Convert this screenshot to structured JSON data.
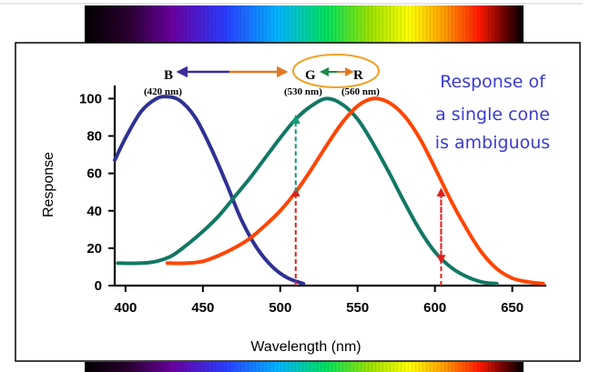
{
  "chart_data": {
    "type": "line",
    "title": "",
    "xlabel": "Wavelength (nm)",
    "ylabel": "Response",
    "xlim": [
      393,
      672
    ],
    "ylim": [
      0,
      107
    ],
    "xticks": [
      400,
      450,
      500,
      550,
      600,
      650
    ],
    "yticks": [
      0,
      20,
      40,
      60,
      80,
      100
    ],
    "series": [
      {
        "name": "B",
        "color": "#2e3192",
        "x": [
          393,
          400,
          410,
          420,
          427,
          435,
          445,
          455,
          465,
          475,
          485,
          495,
          505,
          515
        ],
        "y": [
          67,
          79,
          93,
          100,
          101,
          99,
          90,
          74,
          55,
          35,
          20,
          10,
          4,
          1
        ]
      },
      {
        "name": "G",
        "color": "#117864",
        "x": [
          395,
          410,
          420,
          430,
          440,
          450,
          460,
          470,
          480,
          490,
          500,
          510,
          520,
          530,
          540,
          550,
          560,
          570,
          580,
          590,
          600,
          610,
          620,
          630,
          640
        ],
        "y": [
          12,
          12,
          13,
          16,
          22,
          29,
          37,
          47,
          57,
          68,
          79,
          89,
          96,
          100,
          97,
          89,
          76,
          61,
          45,
          30,
          18,
          10,
          5,
          2,
          1
        ]
      },
      {
        "name": "R",
        "color": "#ff4500",
        "x": [
          427,
          440,
          450,
          460,
          470,
          480,
          490,
          500,
          510,
          520,
          530,
          540,
          550,
          560,
          570,
          580,
          590,
          600,
          610,
          620,
          630,
          640,
          650,
          660,
          670
        ],
        "y": [
          12,
          12,
          13,
          16,
          20,
          25,
          32,
          40,
          50,
          62,
          75,
          87,
          96,
          100,
          98,
          91,
          79,
          63,
          46,
          31,
          18,
          9,
          4,
          2,
          1
        ]
      }
    ],
    "markers": [
      {
        "type": "arrow",
        "color": "#e02020",
        "x": 510,
        "from": 0,
        "to": 50
      },
      {
        "type": "arrow",
        "color": "#e02020",
        "x": 604,
        "from": 0,
        "to": 50
      },
      {
        "type": "arrow",
        "color": "#119977",
        "x": 510,
        "from": 50,
        "to": 89
      },
      {
        "type": "arrow",
        "color": "#e02020",
        "x": 604,
        "from": 50,
        "to": 14
      }
    ]
  },
  "legend": {
    "b_label": "B",
    "b_nm": "(420 nm)",
    "g_label": "G",
    "r_label": "R",
    "g_nm": "(530 nm)",
    "r_nm": "(560 nm)"
  },
  "annotation": {
    "line1": "Response of",
    "line2": "a single cone",
    "line3": "is ambiguous",
    "color": "#3b3bd6"
  }
}
